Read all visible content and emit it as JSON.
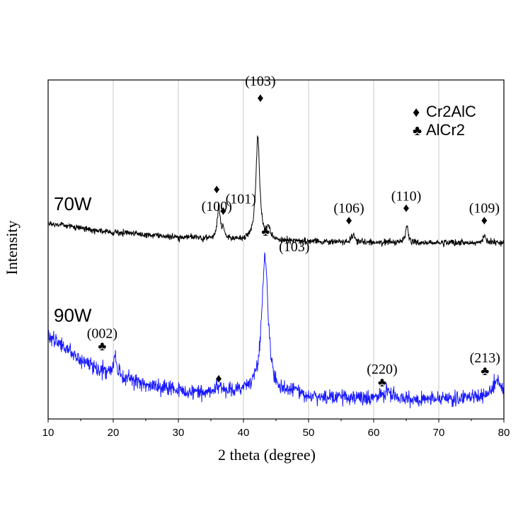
{
  "chart_data": {
    "type": "line",
    "xlabel": "2 theta (degree)",
    "ylabel": "Intensity",
    "xlim": [
      10,
      80
    ],
    "xticks": [
      "10",
      "20",
      "30",
      "40",
      "50",
      "60",
      "70",
      "80"
    ],
    "grid": "vertical",
    "legend": {
      "placement": "top-right",
      "entries": [
        {
          "marker": "♦",
          "label": "Cr2AlC"
        },
        {
          "marker": "♣",
          "label": "AlCr2"
        }
      ]
    },
    "series": [
      {
        "name": "70W",
        "color": "#000000",
        "baseline": [
          [
            10,
            0.76
          ],
          [
            20,
            0.81
          ],
          [
            30,
            0.835
          ],
          [
            40,
            0.85
          ],
          [
            50,
            0.858
          ],
          [
            60,
            0.862
          ],
          [
            70,
            0.865
          ],
          [
            80,
            0.866
          ]
        ],
        "peaks": [
          {
            "x": 36.2,
            "height": 0.17,
            "width": 0.25
          },
          {
            "x": 36.9,
            "height": 0.05,
            "width": 0.25
          },
          {
            "x": 42.2,
            "height": 0.55,
            "width": 0.35
          },
          {
            "x": 43.9,
            "height": 0.06,
            "width": 0.3
          },
          {
            "x": 56.9,
            "height": 0.04,
            "width": 0.3
          },
          {
            "x": 65.1,
            "height": 0.09,
            "width": 0.25
          },
          {
            "x": 77.0,
            "height": 0.04,
            "width": 0.3
          }
        ],
        "noise": 0.018,
        "label": "70W",
        "annotations": [
          {
            "text": "(100)",
            "x": 35.9,
            "marker": "♦",
            "marker_y": 0.575,
            "label_y": 0.665
          },
          {
            "text": "(101)",
            "x": 39.6,
            "marker": "♦",
            "marker_y": 0.69,
            "label_y": 0.625
          },
          {
            "text": "(103)",
            "x": 42.6,
            "marker": "♦",
            "marker_y": 0.09,
            "label_y": 0.0
          },
          {
            "text": "(106)",
            "x": 56.2,
            "marker": "♦",
            "marker_y": 0.74,
            "label_y": 0.675
          },
          {
            "text": "(110)",
            "x": 65.0,
            "marker": "♦",
            "marker_y": 0.675,
            "label_y": 0.61
          },
          {
            "text": "(109)",
            "x": 77.0,
            "marker": "♦",
            "marker_y": 0.74,
            "label_y": 0.675
          }
        ]
      },
      {
        "name": "90W",
        "color": "#1a1aff",
        "baseline": [
          [
            10,
            1.35
          ],
          [
            15,
            1.49
          ],
          [
            20,
            1.57
          ],
          [
            25,
            1.62
          ],
          [
            30,
            1.65
          ],
          [
            35,
            1.66
          ],
          [
            40,
            1.65
          ],
          [
            45,
            1.67
          ],
          [
            50,
            1.68
          ],
          [
            55,
            1.69
          ],
          [
            60,
            1.685
          ],
          [
            65,
            1.69
          ],
          [
            70,
            1.695
          ],
          [
            75,
            1.685
          ],
          [
            80,
            1.66
          ]
        ],
        "peaks": [
          {
            "x": 20.3,
            "height": 0.11,
            "width": 0.3
          },
          {
            "x": 36.4,
            "height": 0.04,
            "width": 0.3
          },
          {
            "x": 43.3,
            "height": 0.73,
            "width": 0.6
          },
          {
            "x": 48.0,
            "height": 0.03,
            "width": 0.4
          },
          {
            "x": 62.1,
            "height": 0.04,
            "width": 0.4
          },
          {
            "x": 78.9,
            "height": 0.08,
            "width": 0.5
          }
        ],
        "noise": 0.04,
        "label": "90W",
        "annotations": [
          {
            "text": "(002)",
            "x": 18.3,
            "marker": "♣",
            "marker_y": 1.41,
            "label_y": 1.34
          },
          {
            "text": "",
            "x": 36.2,
            "marker": "♦",
            "marker_y": 1.58,
            "label_y": null
          },
          {
            "text": "(103)",
            "x": 47.8,
            "marker": "♣",
            "marker_y": 0.8,
            "label_y": 0.88
          },
          {
            "text": "(220)",
            "x": 61.3,
            "marker": "♣",
            "marker_y": 1.6,
            "label_y": 1.53
          },
          {
            "text": "(213)",
            "x": 77.1,
            "marker": "♣",
            "marker_y": 1.54,
            "label_y": 1.47
          }
        ]
      }
    ]
  }
}
